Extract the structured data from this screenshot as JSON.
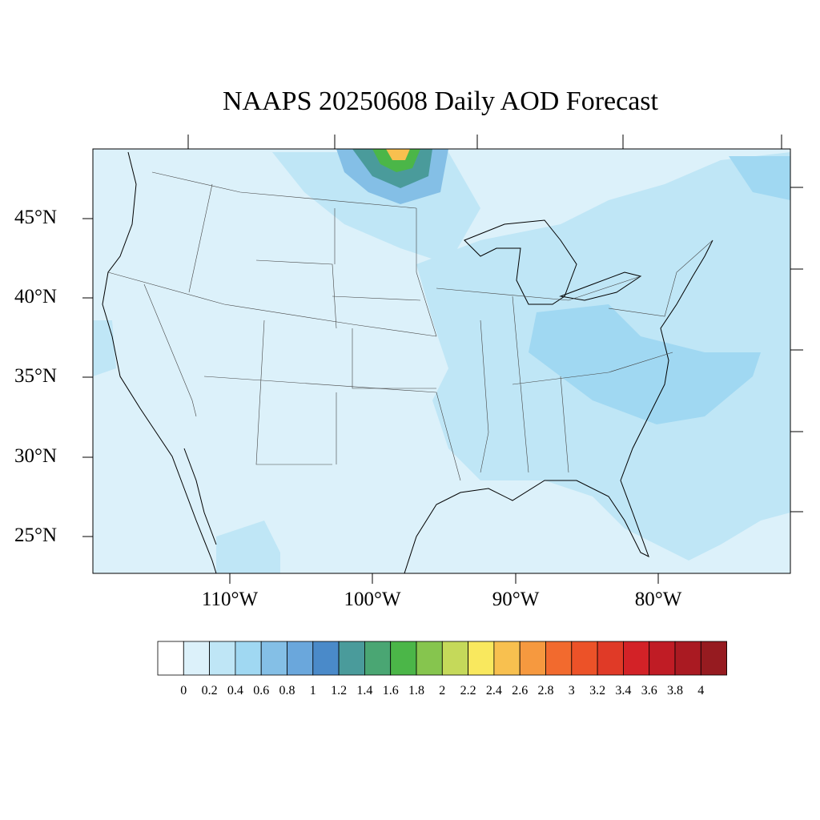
{
  "title": "NAAPS 20250608 Daily AOD Forecast",
  "map": {
    "lat_labels": [
      "45°N",
      "40°N",
      "35°N",
      "30°N",
      "25°N"
    ],
    "lon_labels": [
      "110°W",
      "100°W",
      "90°W",
      "80°W"
    ],
    "background_color": "#dcf1fa"
  },
  "colorbar": {
    "colors": [
      "#ffffff",
      "#dcf1fa",
      "#bfe6f6",
      "#a0d8f2",
      "#84bfe6",
      "#6aa7dc",
      "#4a8ac9",
      "#4a9b9b",
      "#4aa673",
      "#4bb648",
      "#86c54e",
      "#c5d95a",
      "#f9e85e",
      "#f8c04f",
      "#f6993f",
      "#f26a2e",
      "#ec5228",
      "#e03a27",
      "#d32227",
      "#c01c25",
      "#aa1a22",
      "#961b20"
    ],
    "labels": [
      "0",
      "0.2",
      "0.4",
      "0.6",
      "0.8",
      "1",
      "1.2",
      "1.4",
      "1.6",
      "1.8",
      "2",
      "2.2",
      "2.4",
      "2.6",
      "2.8",
      "3",
      "3.2",
      "3.4",
      "3.6",
      "3.8",
      "4"
    ]
  }
}
